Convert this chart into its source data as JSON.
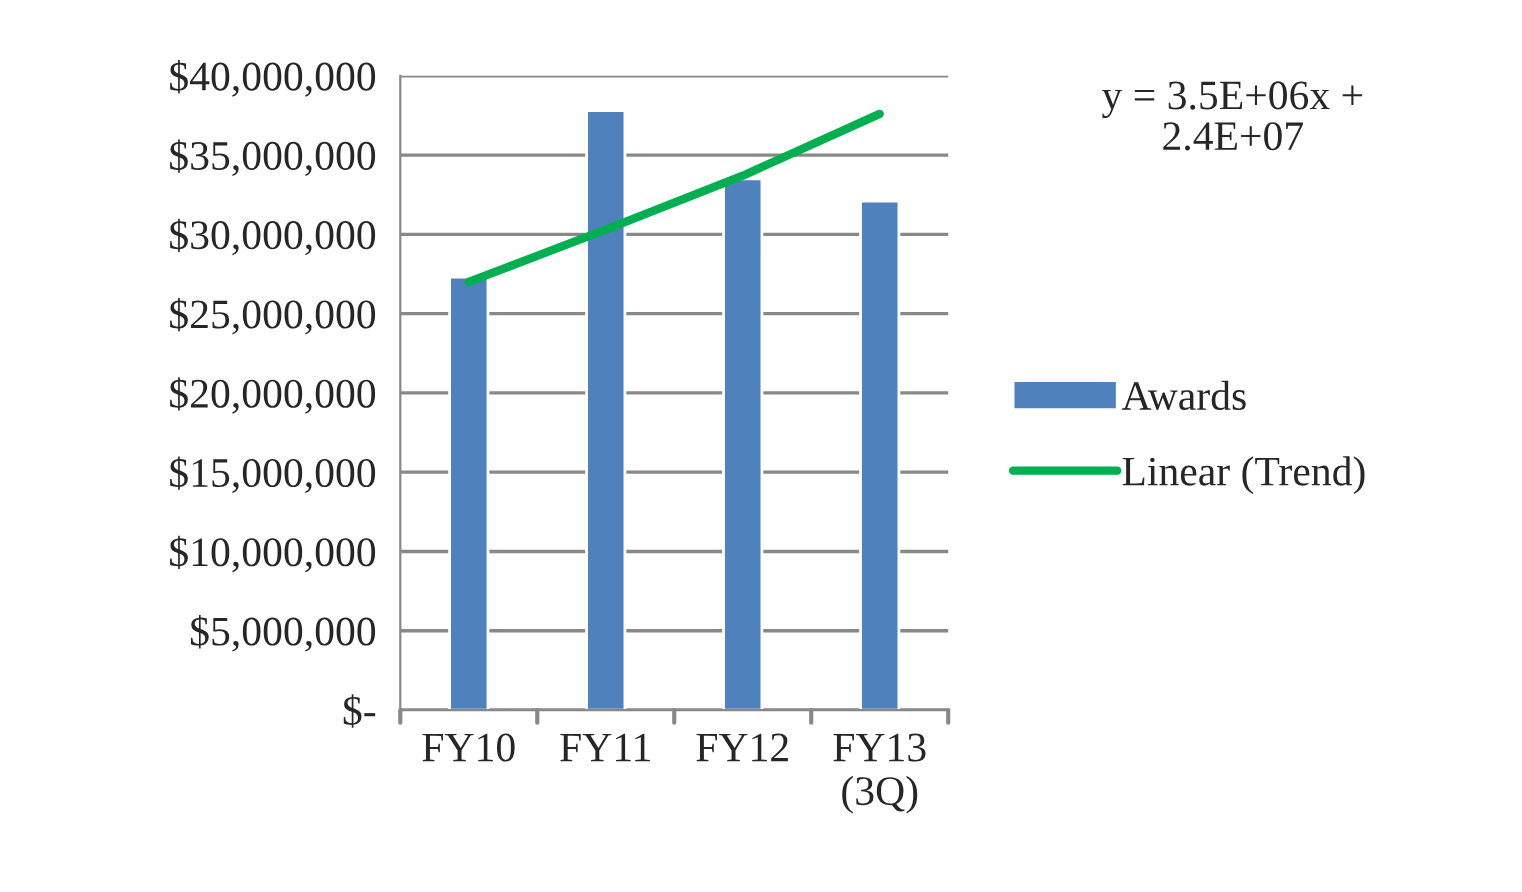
{
  "chart_data": {
    "type": "bar",
    "categories": [
      "FY10",
      "FY11",
      "FY12",
      "FY13\n(3Q)"
    ],
    "series": [
      {
        "name": "Awards",
        "color": "#4f81bd",
        "values": [
          27300000,
          37800000,
          33500000,
          32100000
        ]
      },
      {
        "name": "Linear (Trend)",
        "type": "line",
        "color": "#00b050",
        "values": [
          27000000,
          30300000,
          33700000,
          37600000
        ]
      }
    ],
    "ylim": [
      0,
      40000000
    ],
    "yticks": [
      {
        "value": 0,
        "label": "$-"
      },
      {
        "value": 5000000,
        "label": "$5,000,000"
      },
      {
        "value": 10000000,
        "label": "$10,000,000"
      },
      {
        "value": 15000000,
        "label": "$15,000,000"
      },
      {
        "value": 20000000,
        "label": "$20,000,000"
      },
      {
        "value": 25000000,
        "label": "$25,000,000"
      },
      {
        "value": 30000000,
        "label": "$30,000,000"
      },
      {
        "value": 35000000,
        "label": "$35,000,000"
      },
      {
        "value": 40000000,
        "label": "$40,000,000"
      }
    ],
    "annotations": [
      "y = 3.5E+06x +\n2.4E+07"
    ],
    "grid": "y",
    "legend": "right"
  }
}
